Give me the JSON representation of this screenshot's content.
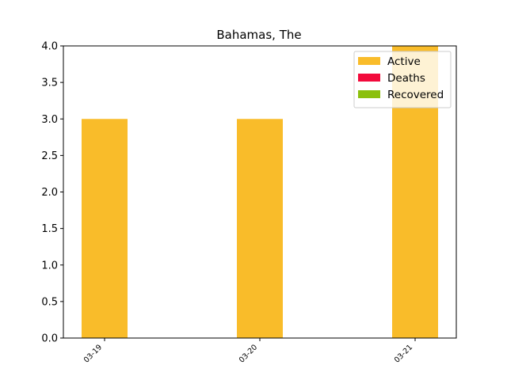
{
  "chart_data": {
    "type": "bar",
    "stacked": true,
    "title": "Bahamas, The",
    "xlabel": "",
    "ylabel": "",
    "categories": [
      "03-19",
      "03-20",
      "03-21"
    ],
    "series": [
      {
        "name": "Active",
        "color": "#f9bc2a",
        "values": [
          3,
          3,
          4
        ]
      },
      {
        "name": "Deaths",
        "color": "#f20a3c",
        "values": [
          0,
          0,
          0
        ]
      },
      {
        "name": "Recovered",
        "color": "#8bc00c",
        "values": [
          0,
          0,
          0
        ]
      }
    ],
    "ylim": [
      0,
      4.0
    ],
    "yticks": [
      "0.0",
      "0.5",
      "1.0",
      "1.5",
      "2.0",
      "2.5",
      "3.0",
      "3.5",
      "4.0"
    ],
    "grid": false,
    "legend_position": "top-right"
  }
}
